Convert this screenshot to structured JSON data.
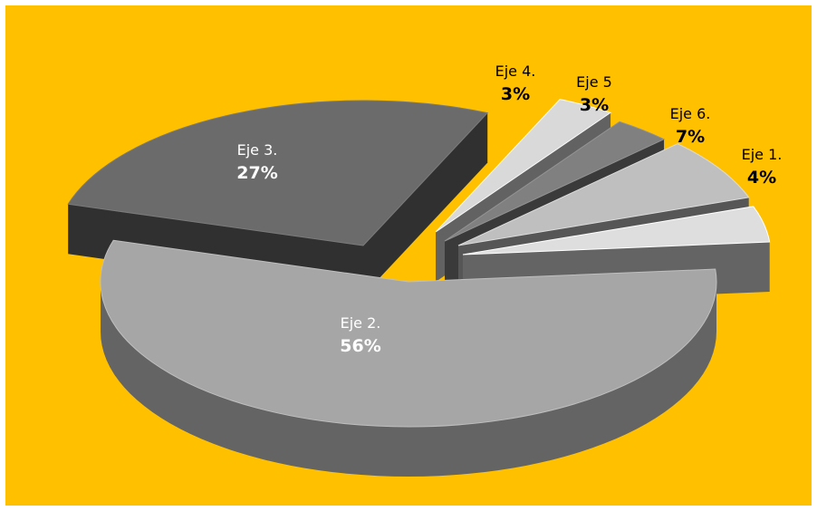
{
  "chart_data": {
    "type": "pie",
    "title": "",
    "background_color": "#ffc000",
    "slices": [
      {
        "label": "Eje 2.",
        "value": 56,
        "value_label": "56%",
        "color": "#a6a6a6"
      },
      {
        "label": "Eje 3.",
        "value": 27,
        "value_label": "27%",
        "color": "#6b6b6b"
      },
      {
        "label": "Eje 4.",
        "value": 3,
        "value_label": "3%",
        "color": "#d9d9d9"
      },
      {
        "label": "Eje 5",
        "value": 3,
        "value_label": "3%",
        "color": "#808080"
      },
      {
        "label": "Eje 6.",
        "value": 7,
        "value_label": "7%",
        "color": "#bfbfbf"
      },
      {
        "label": "Eje 1.",
        "value": 4,
        "value_label": "4%",
        "color": "#dedede"
      }
    ],
    "label_colors": {
      "dark_slice": "#ffffff",
      "outside": "#000000"
    },
    "exploded": true,
    "three_d": true
  }
}
